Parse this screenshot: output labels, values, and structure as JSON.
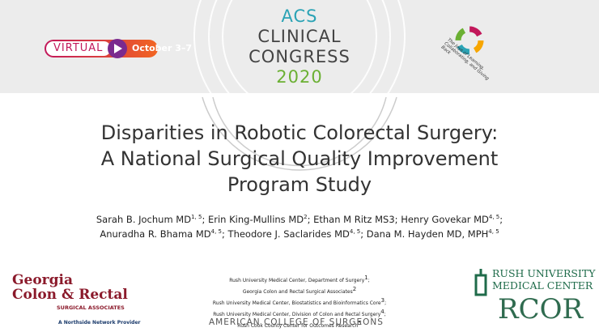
{
  "header": {
    "badge_date": {
      "label": "VIRTUAL",
      "dates": "October 3–7"
    },
    "congress": [
      "ACS",
      "CLINICAL",
      "CONGRESS",
      "2020"
    ],
    "seal_text": "The Joys of Learning, Collaborating, and Giving Back"
  },
  "title": [
    "Disparities in Robotic Colorectal Surgery:",
    "A National Surgical Quality Improvement",
    "Program Study"
  ],
  "authors": [
    [
      {
        "name": "Sarah B. Jochum MD",
        "sup": "1, 5",
        "after": ";"
      },
      {
        "name": "Erin King-Mullins MD",
        "sup": "2",
        "after": ";"
      },
      {
        "name": "Ethan M Ritz MS3",
        "after": ";"
      },
      {
        "name": "Henry Govekar MD",
        "sup": "4, 5",
        "after": ";"
      }
    ],
    [
      {
        "name": "Anuradha R. Bhama MD",
        "sup": "4, 5",
        "after": ";"
      },
      {
        "name": "Theodore J. Saclarides MD",
        "sup": "4, 5",
        "after": ";"
      },
      {
        "name": "Dana M. Hayden MD, MPH",
        "sup": "4, 5"
      }
    ]
  ],
  "affiliations": [
    {
      "name": "Rush University Medical Center, Department of Surgery",
      "sup": "1",
      "after": ";"
    },
    {
      "name": "Georgia Colon and Rectal Surgical Associates",
      "sup": "2"
    },
    {
      "name": "Rush University Medical Center, Biostatistics and Bioinformatics Core",
      "sup": "3",
      "after": ";"
    },
    {
      "name": "Rush University Medical Center, Division of Colon and Rectal Surgery",
      "sup": "4",
      "after": ";"
    },
    {
      "name": "Rush Cook County Center for Outcomes Research",
      "sup": "5"
    }
  ],
  "footer": "AMERICAN COLLEGE OF SURGEONS",
  "left_logo": {
    "line1": "Georgia",
    "line2": "Colon & Rectal",
    "line3": "SURGICAL ASSOCIATES",
    "tagline": "A Northside Network Provider"
  },
  "right_logo": {
    "line1": "RUSH UNIVERSITY",
    "line2": "MEDICAL CENTER",
    "rcor": "RCOR"
  }
}
